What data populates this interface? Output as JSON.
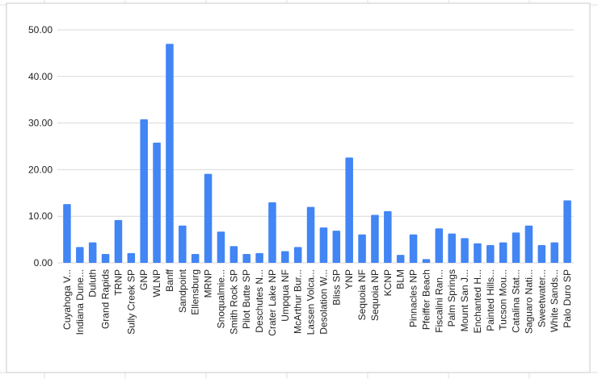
{
  "chart_data": {
    "type": "bar",
    "categories": [
      "Cuyahoga V...",
      "Indiana Dune...",
      "Duluth",
      "Grand Rapids",
      "TRNP",
      "Sully Creek SP",
      "GNP",
      "WLNP",
      "Banff",
      "Sandpoint",
      "Ellensburg",
      "MRNP",
      "Snoqualmie...",
      "Smith Rock SP",
      "Pilot Butte SP",
      "Deschutes N...",
      "Crater Lake NP",
      "Umpqua NF",
      "McArthur Bur...",
      "Lassen Volca...",
      "Desolation W...",
      "Bliss SP",
      "YNP",
      "Sequoia NF",
      "Sequoia NP",
      "KCNP",
      "BLM",
      "Pinnacles NP",
      "Pfeiffer Beach",
      "Fiscalini Ran...",
      "Palm Springs",
      "Mount San J...",
      "Enchanted H...",
      "Painted Hills...",
      "Tucson Mou...",
      "Catalina Stat...",
      "Saguaro Nati...",
      "Sweetwater...",
      "White Sands...",
      "Palo Duro SP"
    ],
    "values": [
      12.6,
      3.4,
      4.4,
      1.9,
      9.2,
      2.1,
      30.8,
      25.8,
      47,
      8,
      1.9,
      19.1,
      6.7,
      3.6,
      1.9,
      2.1,
      13,
      2.5,
      3.4,
      12,
      7.6,
      6.9,
      22.6,
      6.1,
      10.3,
      11.1,
      1.7,
      6.1,
      0.8,
      7.4,
      6.3,
      5.3,
      4.2,
      3.8,
      4.4,
      6.5,
      8,
      3.8,
      4.4,
      13.4
    ],
    "color": "#4285f4",
    "ylim": [
      0,
      50
    ],
    "yticks": [
      {
        "value": 0,
        "label": "0.00"
      },
      {
        "value": 10,
        "label": "10.00"
      },
      {
        "value": 20,
        "label": "20.00"
      },
      {
        "value": 30,
        "label": "30.00"
      },
      {
        "value": 40,
        "label": "40.00"
      },
      {
        "value": 50,
        "label": "50.00"
      }
    ],
    "grid": true
  }
}
